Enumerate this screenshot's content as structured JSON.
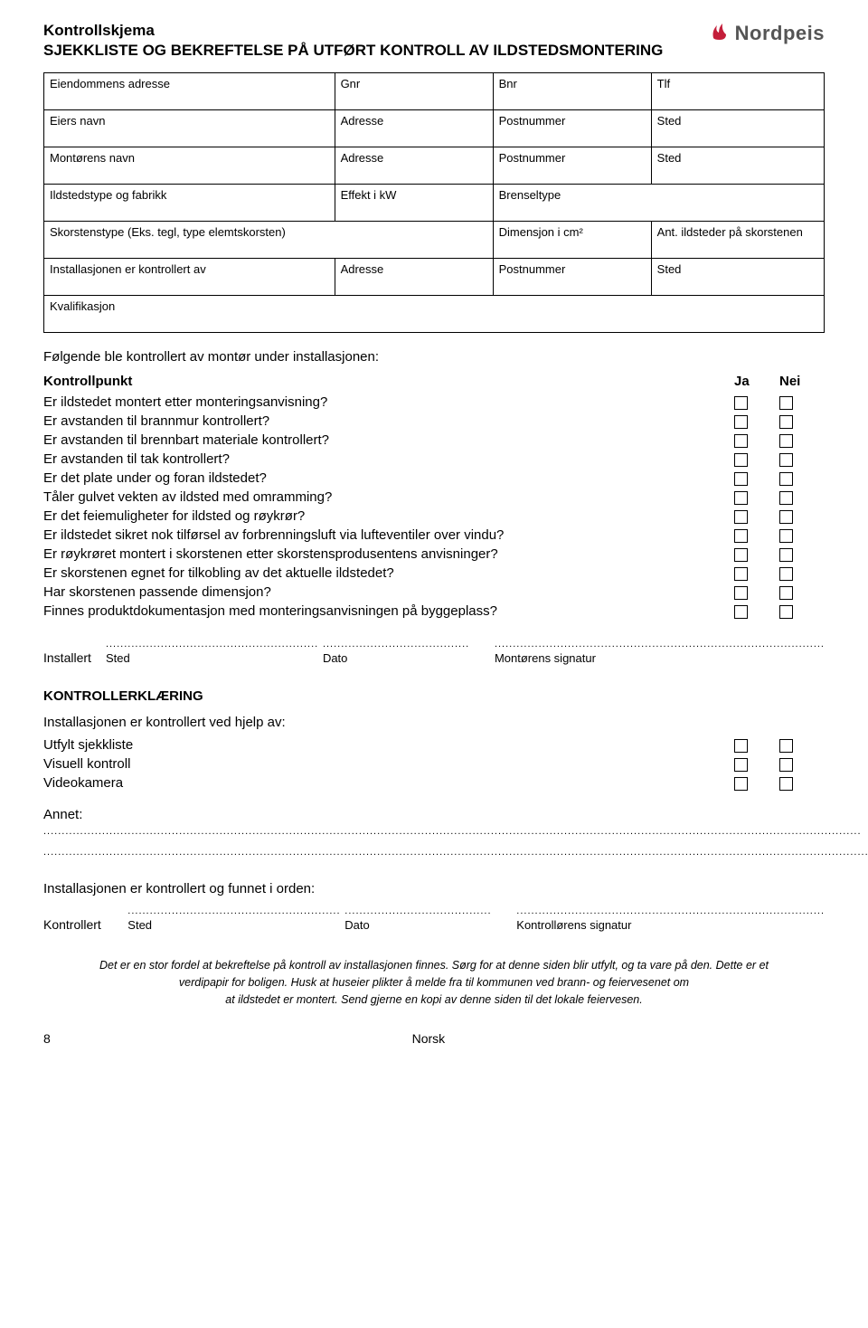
{
  "header": {
    "title_main": "Kontrollskjema",
    "title_sub": "SJEKKLISTE OG BEKREFTELSE PÅ UTFØRT KONTROLL AV ILDSTEDSMONTERING",
    "logo_text": "Nordpeis"
  },
  "info_table": {
    "row1": [
      "Eiendommens adresse",
      "Gnr",
      "Bnr",
      "Tlf"
    ],
    "row2": [
      "Eiers navn",
      "Adresse",
      "Postnummer",
      "Sted"
    ],
    "row3": [
      "Montørens navn",
      "Adresse",
      "Postnummer",
      "Sted"
    ],
    "row4": [
      "Ildstedstype og fabrikk",
      "Effekt i kW",
      "Brenseltype",
      ""
    ],
    "row5": [
      "Skorstenstype (Eks. tegl, type elemtskorsten)",
      "Dimensjon i cm²",
      "Ant. ildsteder på skorstenen",
      ""
    ],
    "row6": [
      "Installasjonen er kontrollert av",
      "Adresse",
      "Postnummer",
      "Sted"
    ],
    "row7": [
      "Kvalifikasjon"
    ]
  },
  "section_intro": "Følgende ble kontrollert av montør under installasjonen:",
  "checklist": {
    "header": {
      "q": "Kontrollpunkt",
      "ja": "Ja",
      "nei": "Nei"
    },
    "items": [
      "Er ildstedet montert etter monteringsanvisning?",
      "Er avstanden til brannmur kontrollert?",
      "Er avstanden til brennbart materiale kontrollert?",
      "Er avstanden til tak kontrollert?",
      "Er det plate under og foran ildstedet?",
      "Tåler gulvet vekten av ildsted med omramming?",
      "Er det feiemuligheter for ildsted og røykrør?",
      "Er ildstedet sikret nok tilførsel av forbrenningsluft via lufteventiler over vindu?",
      "Er røykrøret montert i skorstenen etter skorstensprodusentens anvisninger?",
      "Er skorstenen egnet for tilkobling av det aktuelle ildstedet?",
      "Har skorstenen passende dimensjon?",
      "Finnes produktdokumentasjon med monteringsanvisningen på byggeplass?"
    ]
  },
  "installert": {
    "label": "Installert",
    "sted": "Sted",
    "dato": "Dato",
    "sig": "Montørens signatur"
  },
  "kontrollerk": {
    "heading": "KONTROLLERKLÆRING",
    "sub": "Installasjonen er kontrollert ved hjelp av:",
    "items": [
      "Utfylt sjekkliste",
      "Visuell kontroll",
      "Videokamera"
    ]
  },
  "annet_label": "Annet:",
  "kontrollert_line": "Installasjonen er kontrollert og funnet i orden:",
  "kontrollert": {
    "label": "Kontrollert",
    "sted": "Sted",
    "dato": "Dato",
    "sig": "Kontrollørens signatur"
  },
  "footnote": {
    "l1": "Det er en stor fordel at bekreftelse på kontroll av installasjonen finnes. Sørg for at denne siden blir utfylt, og ta vare på den. Dette er et",
    "l2": "verdipapir for boligen. Husk at huseier plikter å melde fra til kommunen ved brann- og feiervesenet om",
    "l3": "at ildstedet er montert. Send gjerne en kopi av denne siden til det lokale feiervesen."
  },
  "footer": {
    "page": "8",
    "lang": "Norsk"
  }
}
